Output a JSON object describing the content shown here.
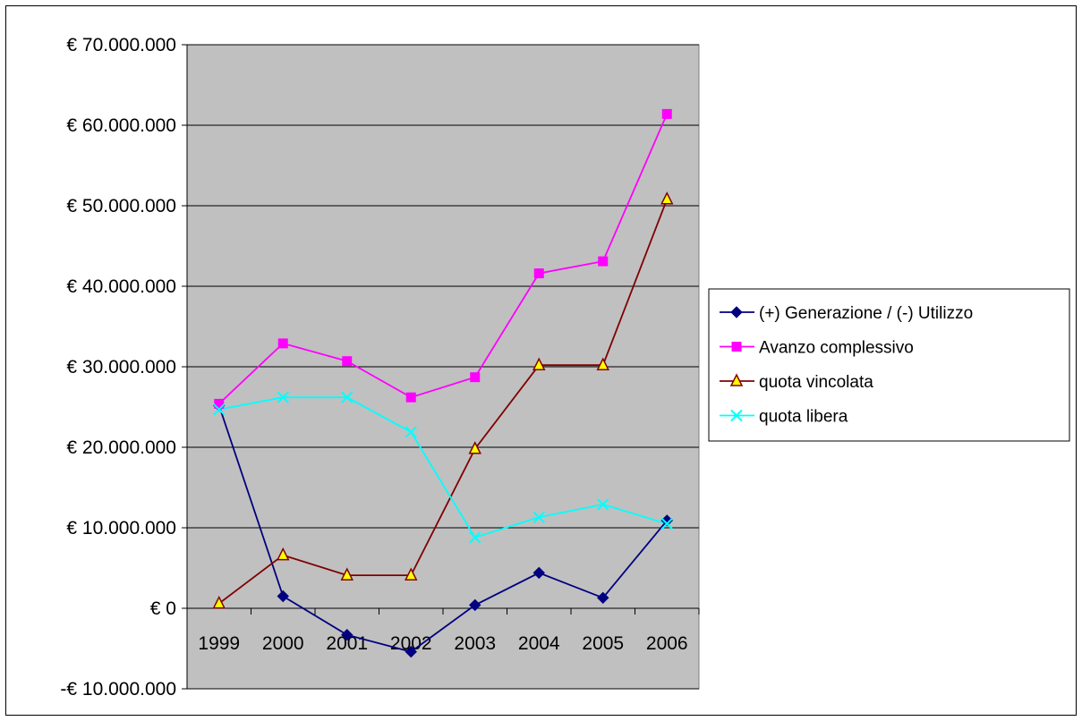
{
  "chart_data": {
    "type": "line",
    "categories": [
      "1999",
      "2000",
      "2001",
      "2002",
      "2003",
      "2004",
      "2005",
      "2006"
    ],
    "series": [
      {
        "name": "(+) Generazione / (-) Utilizzo",
        "color": "#000080",
        "marker": "diamond",
        "values": [
          25200000,
          1500000,
          -3300000,
          -5400000,
          400000,
          4400000,
          1300000,
          10900000
        ]
      },
      {
        "name": "Avanzo complessivo",
        "color": "#FF00FF",
        "marker": "square",
        "values": [
          25400000,
          32900000,
          30700000,
          26200000,
          28700000,
          41600000,
          43100000,
          61400000
        ]
      },
      {
        "name": "quota vincolata",
        "color": "#800000",
        "marker_fill": "#FFFF00",
        "marker": "triangle",
        "values": [
          600000,
          6600000,
          4100000,
          4100000,
          19800000,
          30200000,
          30200000,
          50800000
        ]
      },
      {
        "name": "quota libera",
        "color": "#00FFFF",
        "marker": "x",
        "values": [
          24700000,
          26200000,
          26200000,
          21900000,
          8800000,
          11300000,
          12900000,
          10500000
        ]
      }
    ],
    "y_ticks": [
      {
        "value": 70000000,
        "label": "€ 70.000.000",
        "color": "#000000"
      },
      {
        "value": 60000000,
        "label": "€ 60.000.000",
        "color": "#000000"
      },
      {
        "value": 50000000,
        "label": "€ 50.000.000",
        "color": "#000000"
      },
      {
        "value": 40000000,
        "label": "€ 40.000.000",
        "color": "#000000"
      },
      {
        "value": 30000000,
        "label": "€ 30.000.000",
        "color": "#000000"
      },
      {
        "value": 20000000,
        "label": "€ 20.000.000",
        "color": "#000000"
      },
      {
        "value": 10000000,
        "label": "€ 10.000.000",
        "color": "#000000"
      },
      {
        "value": 0,
        "label": "€ 0",
        "color": "#000000"
      },
      {
        "value": -10000000,
        "label": "-€ 10.000.000",
        "color": "#FF0000"
      }
    ],
    "ylim": [
      -10000000,
      70000000
    ],
    "grid": true,
    "plot_background": "#C0C0C0",
    "legend_position": "right"
  }
}
